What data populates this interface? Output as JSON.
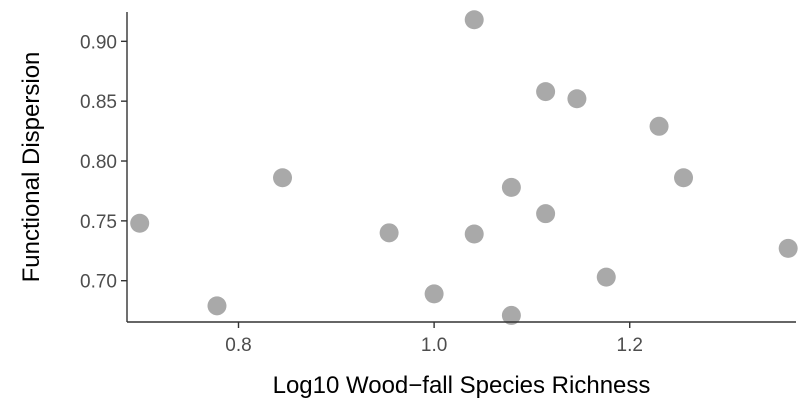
{
  "chart_data": {
    "type": "scatter",
    "title": "",
    "xlabel": "Log10 Wood−fall Species Richness",
    "ylabel": "Functional Dispersion",
    "xlim": [
      0.686,
      1.37
    ],
    "ylim": [
      0.6655,
      0.9245
    ],
    "x_ticks": [
      0.8,
      1.0,
      1.2
    ],
    "x_tick_labels": [
      "0.8",
      "1.0",
      "1.2"
    ],
    "y_ticks": [
      0.7,
      0.75,
      0.8,
      0.85,
      0.9
    ],
    "y_tick_labels": [
      "0.70",
      "0.75",
      "0.80",
      "0.85",
      "0.90"
    ],
    "grid": false,
    "point_color": "#a9a9a9",
    "points": [
      {
        "x": 0.699,
        "y": 0.748
      },
      {
        "x": 0.778,
        "y": 0.679
      },
      {
        "x": 0.845,
        "y": 0.786
      },
      {
        "x": 0.954,
        "y": 0.74
      },
      {
        "x": 1.0,
        "y": 0.689
      },
      {
        "x": 1.041,
        "y": 0.739
      },
      {
        "x": 1.041,
        "y": 0.918
      },
      {
        "x": 1.079,
        "y": 0.778
      },
      {
        "x": 1.079,
        "y": 0.671
      },
      {
        "x": 1.114,
        "y": 0.756
      },
      {
        "x": 1.114,
        "y": 0.858
      },
      {
        "x": 1.146,
        "y": 0.852
      },
      {
        "x": 1.176,
        "y": 0.703
      },
      {
        "x": 1.23,
        "y": 0.829
      },
      {
        "x": 1.255,
        "y": 0.786
      },
      {
        "x": 1.362,
        "y": 0.727
      }
    ]
  }
}
